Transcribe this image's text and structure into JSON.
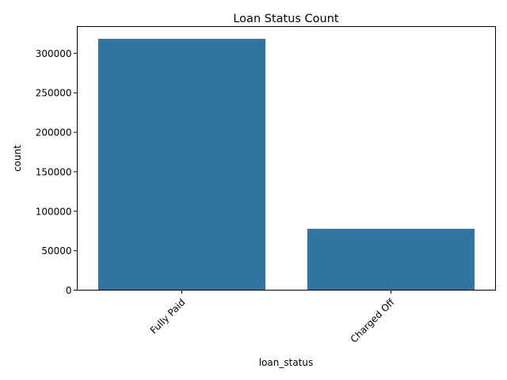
{
  "chart_data": {
    "type": "bar",
    "title": "Loan Status Count",
    "xlabel": "loan_status",
    "ylabel": "count",
    "categories": [
      "Fully Paid",
      "Charged Off"
    ],
    "values": [
      318400,
      77700
    ],
    "ylim": [
      0,
      334000
    ],
    "yticks": [
      0,
      50000,
      100000,
      150000,
      200000,
      250000,
      300000
    ],
    "ytick_labels": [
      "0",
      "50000",
      "100000",
      "150000",
      "200000",
      "250000",
      "300000"
    ],
    "grid": false,
    "legend": "none",
    "x_tick_rotation_deg": 45
  },
  "colors": {
    "bar": "#3274a1",
    "axis": "#000000",
    "background": "#ffffff"
  }
}
